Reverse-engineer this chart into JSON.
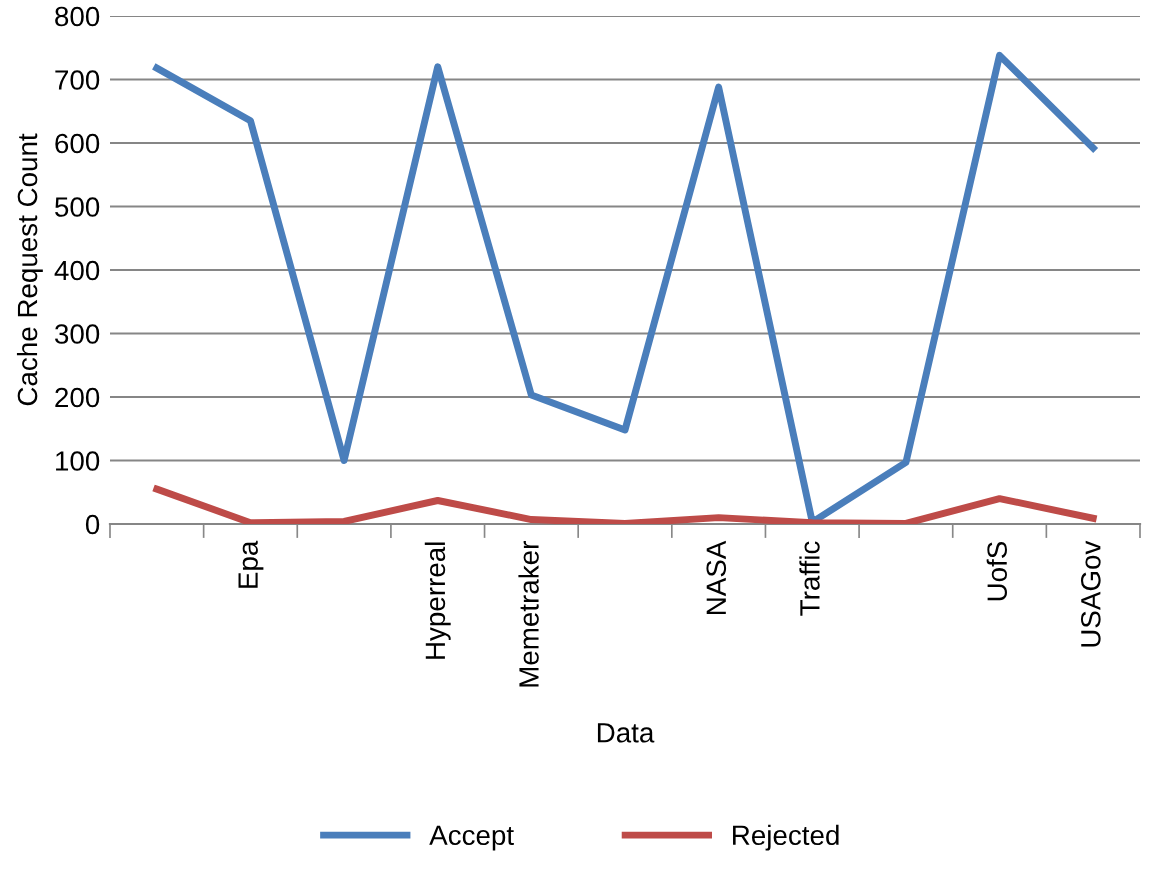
{
  "chart_data": {
    "type": "line",
    "xlabel": "Data",
    "ylabel": "Cache Request Count",
    "categories": [
      null,
      "Epa",
      null,
      "Hyperreal",
      "Memetraker",
      null,
      "NASA",
      "Traffic",
      null,
      "UofS",
      "USAGov"
    ],
    "series": [
      {
        "name": "Accept",
        "color": "#4a7ebb",
        "values": [
          718,
          635,
          100,
          720,
          203,
          148,
          688,
          3,
          97,
          738,
          592
        ]
      },
      {
        "name": "Rejected",
        "color": "#be4b48",
        "values": [
          55,
          2,
          4,
          37,
          7,
          1,
          10,
          2,
          1,
          40,
          9
        ]
      }
    ],
    "ylim": [
      0,
      800
    ],
    "yticks": [
      0,
      100,
      200,
      300,
      400,
      500,
      600,
      700,
      800
    ],
    "grid": "y",
    "legend": "bottom",
    "marker": "none",
    "line_style": "solid"
  }
}
